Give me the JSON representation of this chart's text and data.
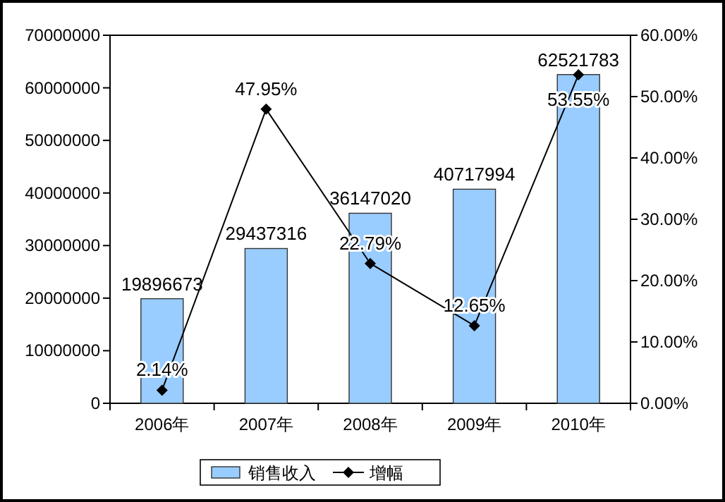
{
  "chart_data": {
    "type": "bar",
    "categories": [
      "2006年",
      "2007年",
      "2008年",
      "2009年",
      "2010年"
    ],
    "series": [
      {
        "name": "销售收入",
        "color": "#99ccff",
        "values": [
          19896673,
          29437316,
          36147020,
          40717994,
          62521783
        ],
        "value_labels": [
          "19896673",
          "29437316",
          "36147020",
          "40717994",
          "62521783"
        ]
      },
      {
        "name": "增幅",
        "type": "line",
        "axis": "y2",
        "color": "#000000",
        "values": [
          2.14,
          47.95,
          22.79,
          12.65,
          53.55
        ],
        "value_labels": [
          "2.14%",
          "47.95%",
          "22.79%",
          "12.65%",
          "53.55%"
        ]
      }
    ],
    "ylim": [
      0,
      70000000
    ],
    "yticks": [
      0,
      10000000,
      20000000,
      30000000,
      40000000,
      50000000,
      60000000,
      70000000
    ],
    "y2lim": [
      0,
      60
    ],
    "y2ticks": [
      {
        "value": 0,
        "label": "0.00%"
      },
      {
        "value": 10,
        "label": "10.00%"
      },
      {
        "value": 20,
        "label": "20.00%"
      },
      {
        "value": 30,
        "label": "30.00%"
      },
      {
        "value": 40,
        "label": "40.00%"
      },
      {
        "value": 50,
        "label": "50.00%"
      },
      {
        "value": 60,
        "label": "60.00%"
      }
    ],
    "legend": "bottom",
    "marker": "diamond",
    "grid": false
  }
}
